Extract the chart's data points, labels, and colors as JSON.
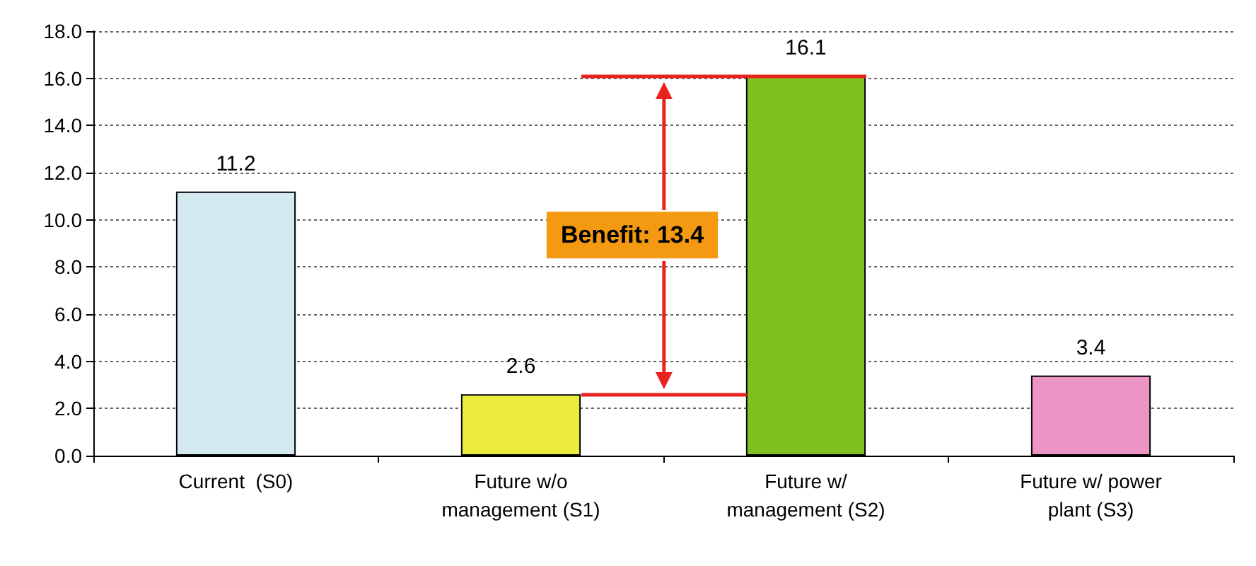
{
  "chart_data": {
    "type": "bar",
    "categories": [
      "Current  (S0)",
      "Future w/o\nmanagement (S1)",
      "Future w/\nmanagement (S2)",
      "Future w/ power\nplant (S3)"
    ],
    "values": [
      11.2,
      2.6,
      16.1,
      3.4
    ],
    "colors": [
      "#d2eaf0",
      "#ecec3c",
      "#7fbf1f",
      "#ec94c4"
    ],
    "ylim": [
      0,
      18
    ],
    "yticks": [
      {
        "value": 0,
        "label": "0.0"
      },
      {
        "value": 2,
        "label": "2.0"
      },
      {
        "value": 4,
        "label": "4.0"
      },
      {
        "value": 6,
        "label": "6.0"
      },
      {
        "value": 8,
        "label": "8.0"
      },
      {
        "value": 10,
        "label": "10.0"
      },
      {
        "value": 12,
        "label": "12.0"
      },
      {
        "value": 14,
        "label": "14.0"
      },
      {
        "value": 16,
        "label": "16.0"
      },
      {
        "value": 18,
        "label": "18.0"
      }
    ],
    "grid": "y",
    "data_labels": true,
    "annotations": [
      "Benefit: 13.4"
    ]
  }
}
